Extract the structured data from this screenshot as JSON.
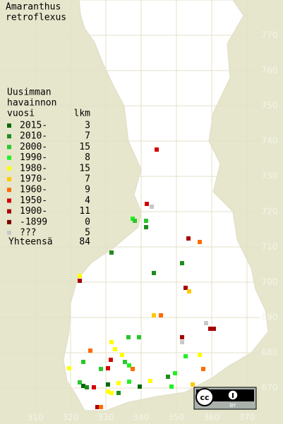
{
  "title": [
    "Amaranthus",
    "retroflexus"
  ],
  "legend": {
    "header": [
      "Uusimman",
      "havainnon",
      "vuosi"
    ],
    "count_header": "lkm",
    "items": [
      {
        "label": "2015-",
        "count": 3,
        "color": "#006a0a"
      },
      {
        "label": "2010-",
        "count": 7,
        "color": "#1e8c1e"
      },
      {
        "label": "2000-",
        "count": 15,
        "color": "#2cc62c"
      },
      {
        "label": "1990-",
        "count": 8,
        "color": "#22f022"
      },
      {
        "label": "1980-",
        "count": 15,
        "color": "#ffff00"
      },
      {
        "label": "1970-",
        "count": 7,
        "color": "#ffc800"
      },
      {
        "label": "1960-",
        "count": 9,
        "color": "#ff6a00"
      },
      {
        "label": "1950-",
        "count": 4,
        "color": "#d40000"
      },
      {
        "label": "1900-",
        "count": 11,
        "color": "#a80000"
      },
      {
        "label": "-1899",
        "count": 0,
        "color": "#780000"
      },
      {
        "label": "???",
        "count": 5,
        "color": "#c8c8c8"
      }
    ],
    "total_label": "Yhteensä",
    "total": 84
  },
  "axes": {
    "xticks": [
      310,
      320,
      330,
      340,
      350,
      360,
      370
    ],
    "yticks": [
      670,
      680,
      690,
      700,
      710,
      720,
      730,
      740,
      750,
      760,
      770
    ]
  },
  "points": [
    {
      "x": 344.4,
      "y": 737.6,
      "item": 7
    },
    {
      "x": 341.6,
      "y": 722.2,
      "item": 7
    },
    {
      "x": 343,
      "y": 721.4,
      "item": 10
    },
    {
      "x": 337.6,
      "y": 718,
      "item": 3
    },
    {
      "x": 338.2,
      "y": 717.4,
      "item": 2
    },
    {
      "x": 341.4,
      "y": 717.4,
      "item": 2
    },
    {
      "x": 341.4,
      "y": 715.6,
      "item": 1
    },
    {
      "x": 353.4,
      "y": 712.4,
      "item": 8
    },
    {
      "x": 356.6,
      "y": 711.4,
      "item": 6
    },
    {
      "x": 331.6,
      "y": 708.4,
      "item": 1
    },
    {
      "x": 351.6,
      "y": 705.4,
      "item": 1
    },
    {
      "x": 343.6,
      "y": 702.6,
      "item": 1
    },
    {
      "x": 322.6,
      "y": 701.8,
      "item": 4
    },
    {
      "x": 322.6,
      "y": 700.4,
      "item": 8
    },
    {
      "x": 352.6,
      "y": 698.4,
      "item": 8
    },
    {
      "x": 353.6,
      "y": 697.4,
      "item": 5
    },
    {
      "x": 343.6,
      "y": 690.6,
      "item": 5
    },
    {
      "x": 345.6,
      "y": 690.6,
      "item": 6
    },
    {
      "x": 358.4,
      "y": 688.4,
      "item": 10
    },
    {
      "x": 359.6,
      "y": 686.8,
      "item": 8
    },
    {
      "x": 360.6,
      "y": 686.8,
      "item": 8
    },
    {
      "x": 351.6,
      "y": 684.4,
      "item": 8
    },
    {
      "x": 351.6,
      "y": 683,
      "item": 10
    },
    {
      "x": 336.4,
      "y": 684.4,
      "item": 2
    },
    {
      "x": 339.4,
      "y": 684.4,
      "item": 2
    },
    {
      "x": 331.6,
      "y": 683,
      "item": 4
    },
    {
      "x": 332.6,
      "y": 681,
      "item": 4
    },
    {
      "x": 325.6,
      "y": 680.6,
      "item": 6
    },
    {
      "x": 334.6,
      "y": 679.4,
      "item": 4
    },
    {
      "x": 352.6,
      "y": 679,
      "item": 3
    },
    {
      "x": 356.6,
      "y": 679.4,
      "item": 4
    },
    {
      "x": 323.6,
      "y": 677.4,
      "item": 2
    },
    {
      "x": 331.4,
      "y": 678,
      "item": 7
    },
    {
      "x": 335.4,
      "y": 677.4,
      "item": 2
    },
    {
      "x": 336.6,
      "y": 676.4,
      "item": 3
    },
    {
      "x": 337.6,
      "y": 675.4,
      "item": 6
    },
    {
      "x": 319.6,
      "y": 675.6,
      "item": 4
    },
    {
      "x": 330.6,
      "y": 675.6,
      "item": 7
    },
    {
      "x": 328.6,
      "y": 675.4,
      "item": 2
    },
    {
      "x": 357.6,
      "y": 675.4,
      "item": 6
    },
    {
      "x": 322.6,
      "y": 671.6,
      "item": 2
    },
    {
      "x": 323.6,
      "y": 670.6,
      "item": 0
    },
    {
      "x": 324.6,
      "y": 670.2,
      "item": 1
    },
    {
      "x": 326.6,
      "y": 670.2,
      "item": 7
    },
    {
      "x": 330.6,
      "y": 671,
      "item": 0
    },
    {
      "x": 333.6,
      "y": 671.4,
      "item": 4
    },
    {
      "x": 336.6,
      "y": 671.8,
      "item": 3
    },
    {
      "x": 342.6,
      "y": 672,
      "item": 4
    },
    {
      "x": 339.6,
      "y": 670.4,
      "item": 0
    },
    {
      "x": 330.6,
      "y": 669,
      "item": 4
    },
    {
      "x": 331.6,
      "y": 668.6,
      "item": 4
    },
    {
      "x": 333.6,
      "y": 668.6,
      "item": 1
    },
    {
      "x": 347.6,
      "y": 673.2,
      "item": 1
    },
    {
      "x": 349.6,
      "y": 674.2,
      "item": 3
    },
    {
      "x": 348.6,
      "y": 670.4,
      "item": 3
    },
    {
      "x": 354.6,
      "y": 671,
      "item": 5
    },
    {
      "x": 327.6,
      "y": 664.6,
      "item": 8
    },
    {
      "x": 328.6,
      "y": 664.6,
      "item": 6
    }
  ],
  "license": "BY"
}
